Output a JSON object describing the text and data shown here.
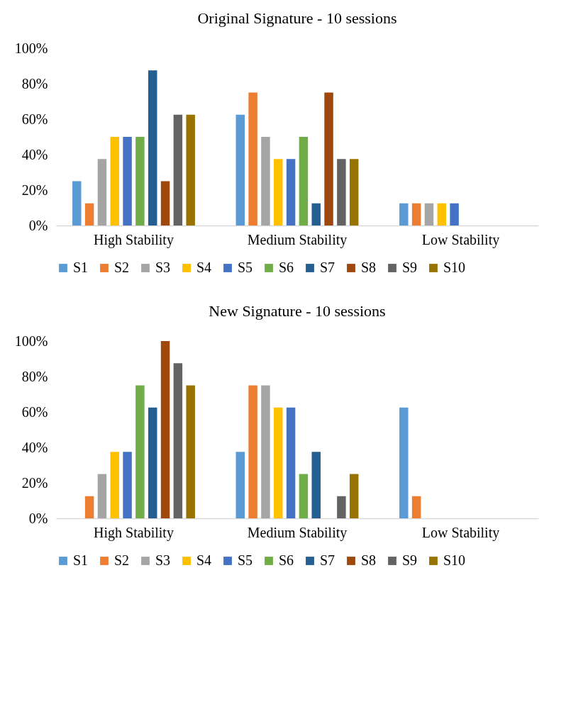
{
  "chart_data": [
    {
      "type": "bar",
      "title": "Original Signature - 10 sessions",
      "categories": [
        "High Stability",
        "Medium Stability",
        "Low Stability"
      ],
      "ylim": [
        0,
        100
      ],
      "yticks": [
        {
          "value": 0,
          "label": "0%"
        },
        {
          "value": 20,
          "label": "20%"
        },
        {
          "value": 40,
          "label": "40%"
        },
        {
          "value": 60,
          "label": "60%"
        },
        {
          "value": 80,
          "label": "80%"
        },
        {
          "value": 100,
          "label": "100%"
        }
      ],
      "grid": false,
      "legend": "bottom",
      "series": [
        {
          "name": "S1",
          "color": "#5b9bd5",
          "values": [
            25,
            62.5,
            12.5
          ]
        },
        {
          "name": "S2",
          "color": "#ed7d31",
          "values": [
            12.5,
            75,
            12.5
          ]
        },
        {
          "name": "S3",
          "color": "#a5a5a5",
          "values": [
            37.5,
            50,
            12.5
          ]
        },
        {
          "name": "S4",
          "color": "#ffc000",
          "values": [
            50,
            37.5,
            12.5
          ]
        },
        {
          "name": "S5",
          "color": "#4472c4",
          "values": [
            50,
            37.5,
            12.5
          ]
        },
        {
          "name": "S6",
          "color": "#70ad47",
          "values": [
            50,
            50,
            0
          ]
        },
        {
          "name": "S7",
          "color": "#255e91",
          "values": [
            87.5,
            12.5,
            0
          ]
        },
        {
          "name": "S8",
          "color": "#9e480e",
          "values": [
            25,
            75,
            0
          ]
        },
        {
          "name": "S9",
          "color": "#636363",
          "values": [
            62.5,
            37.5,
            0
          ]
        },
        {
          "name": "S10",
          "color": "#997300",
          "values": [
            62.5,
            37.5,
            0
          ]
        }
      ]
    },
    {
      "type": "bar",
      "title": "New Signature - 10 sessions",
      "categories": [
        "High Stability",
        "Medium Stability",
        "Low Stability"
      ],
      "ylim": [
        0,
        100
      ],
      "yticks": [
        {
          "value": 0,
          "label": "0%"
        },
        {
          "value": 20,
          "label": "20%"
        },
        {
          "value": 40,
          "label": "40%"
        },
        {
          "value": 60,
          "label": "60%"
        },
        {
          "value": 80,
          "label": "80%"
        },
        {
          "value": 100,
          "label": "100%"
        }
      ],
      "grid": false,
      "legend": "bottom",
      "series": [
        {
          "name": "S1",
          "color": "#5b9bd5",
          "values": [
            0,
            37.5,
            62.5
          ]
        },
        {
          "name": "S2",
          "color": "#ed7d31",
          "values": [
            12.5,
            75,
            12.5
          ]
        },
        {
          "name": "S3",
          "color": "#a5a5a5",
          "values": [
            25,
            75,
            0
          ]
        },
        {
          "name": "S4",
          "color": "#ffc000",
          "values": [
            37.5,
            62.5,
            0
          ]
        },
        {
          "name": "S5",
          "color": "#4472c4",
          "values": [
            37.5,
            62.5,
            0
          ]
        },
        {
          "name": "S6",
          "color": "#70ad47",
          "values": [
            75,
            25,
            0
          ]
        },
        {
          "name": "S7",
          "color": "#255e91",
          "values": [
            62.5,
            37.5,
            0
          ]
        },
        {
          "name": "S8",
          "color": "#9e480e",
          "values": [
            100,
            0,
            0
          ]
        },
        {
          "name": "S9",
          "color": "#636363",
          "values": [
            87.5,
            12.5,
            0
          ]
        },
        {
          "name": "S10",
          "color": "#997300",
          "values": [
            75,
            25,
            0
          ]
        }
      ]
    }
  ]
}
